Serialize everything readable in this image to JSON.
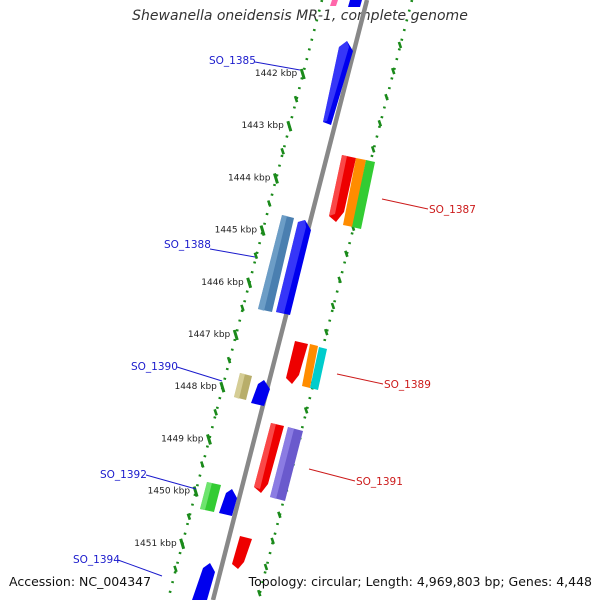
{
  "title": "Shewanella oneidensis MR-1, complete genome",
  "footer": {
    "accession": "Accession: NC_004347",
    "topology": "Topology: circular; Length: 4,969,803 bp; Genes: 4,448"
  },
  "ruler": {
    "ticks": [
      "1442 kbp",
      "1443 kbp",
      "1444 kbp",
      "1445 kbp",
      "1446 kbp",
      "1447 kbp",
      "1448 kbp",
      "1449 kbp",
      "1450 kbp",
      "1451 kbp"
    ]
  },
  "gene_labels": {
    "so_1385": "SO_1385",
    "so_1387": "SO_1387",
    "so_1388": "SO_1388",
    "so_1389": "SO_1389",
    "so_1390": "SO_1390",
    "so_1391": "SO_1391",
    "so_1392": "SO_1392",
    "so_1394": "SO_1394"
  },
  "colors": {
    "backbone": "#888888",
    "ring_dots": "#1a8a1a",
    "reverse_label": "#1a1acc",
    "forward_label": "#cc1a1a",
    "blue": "#0000ee",
    "steelblue": "#4a7fb0",
    "red": "#ee0000",
    "orange": "#ff8c00",
    "green": "#33cc33",
    "cyan": "#00cccc",
    "khaki": "#b8ae6a",
    "slateblue": "#6a5acd"
  }
}
